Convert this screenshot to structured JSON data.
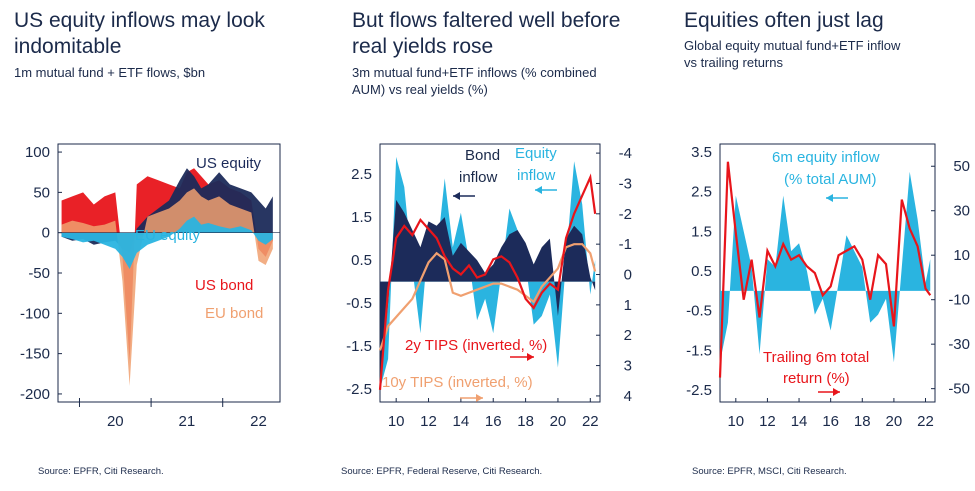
{
  "colors": {
    "navy": "#1c2b5a",
    "cyan": "#2ab4e0",
    "red": "#e8151b",
    "orange": "#f0a070",
    "text": "#1b2a4a"
  },
  "chart_data": [
    {
      "type": "area",
      "title": "US equity inflows may look indomitable",
      "subtitle": "1m mutual fund + ETF flows, $bn",
      "source": "Source: EPFR, Citi Research.",
      "x_ticks": [
        "20",
        "21",
        "22"
      ],
      "y_ticks": [
        "100",
        "50",
        "0",
        "-50",
        "-100",
        "-150",
        "-200"
      ],
      "ylim": [
        -210,
        110
      ],
      "xlim": [
        2019.2,
        2022.3
      ],
      "series": [
        {
          "name": "US equity",
          "color": "#1c2b5a",
          "x": [
            2019.25,
            2019.4,
            2019.55,
            2019.7,
            2019.85,
            2020.0,
            2020.1,
            2020.2,
            2020.3,
            2020.45,
            2020.6,
            2020.75,
            2020.9,
            2021.0,
            2021.1,
            2021.2,
            2021.3,
            2021.45,
            2021.6,
            2021.75,
            2021.9,
            2022.0,
            2022.1,
            2022.2
          ],
          "y": [
            -5,
            -10,
            -8,
            -15,
            -12,
            -10,
            -20,
            -25,
            5,
            20,
            30,
            40,
            65,
            80,
            70,
            55,
            60,
            75,
            60,
            55,
            50,
            40,
            30,
            45
          ]
        },
        {
          "name": "EU equity",
          "color": "#2ab4e0",
          "x": [
            2019.25,
            2019.4,
            2019.55,
            2019.7,
            2019.85,
            2020.0,
            2020.1,
            2020.2,
            2020.3,
            2020.45,
            2020.6,
            2020.75,
            2020.9,
            2021.0,
            2021.1,
            2021.2,
            2021.3,
            2021.45,
            2021.6,
            2021.75,
            2021.9,
            2022.0,
            2022.1,
            2022.2
          ],
          "y": [
            -5,
            -8,
            -12,
            -10,
            -15,
            -20,
            -30,
            -45,
            -25,
            -15,
            -10,
            -5,
            5,
            15,
            20,
            10,
            12,
            8,
            5,
            8,
            3,
            -10,
            -15,
            -8
          ]
        },
        {
          "name": "US bond",
          "color": "#e8151b",
          "x": [
            2019.25,
            2019.4,
            2019.55,
            2019.7,
            2019.85,
            2020.0,
            2020.1,
            2020.2,
            2020.3,
            2020.45,
            2020.6,
            2020.75,
            2020.9,
            2021.0,
            2021.1,
            2021.2,
            2021.3,
            2021.45,
            2021.6,
            2021.75,
            2021.9,
            2022.0,
            2022.1,
            2022.2
          ],
          "y": [
            40,
            45,
            50,
            35,
            45,
            50,
            -30,
            -160,
            60,
            70,
            65,
            60,
            55,
            75,
            80,
            70,
            60,
            65,
            55,
            50,
            40,
            -20,
            -30,
            -10
          ]
        },
        {
          "name": "EU bond",
          "color": "#f0a070",
          "x": [
            2019.25,
            2019.4,
            2019.55,
            2019.7,
            2019.85,
            2020.0,
            2020.1,
            2020.2,
            2020.3,
            2020.45,
            2020.6,
            2020.75,
            2020.9,
            2021.0,
            2021.1,
            2021.2,
            2021.3,
            2021.45,
            2021.6,
            2021.75,
            2021.9,
            2022.0,
            2022.1,
            2022.2
          ],
          "y": [
            10,
            15,
            12,
            8,
            10,
            15,
            -60,
            -190,
            -40,
            20,
            25,
            30,
            40,
            50,
            55,
            45,
            40,
            45,
            35,
            30,
            25,
            -35,
            -40,
            -20
          ]
        }
      ]
    },
    {
      "type": "line",
      "title": "But flows faltered well before real yields rose",
      "subtitle": "3m mutual fund+ETF inflows (% combined AUM) vs real yields (%)",
      "source": "Source: EPFR, Federal Reserve, Citi Research.",
      "x_ticks": [
        "10",
        "12",
        "14",
        "16",
        "18",
        "20",
        "22"
      ],
      "y_ticks_left": [
        "2.5",
        "1.5",
        "0.5",
        "-0.5",
        "-1.5",
        "-2.5"
      ],
      "y_ticks_right": [
        "-4",
        "-3",
        "-2",
        "-1",
        "0",
        "1",
        "2",
        "3",
        "4"
      ],
      "ylim_left": [
        -2.8,
        3.2
      ],
      "ylim_right": [
        4.2,
        -4.3
      ],
      "xlim": [
        2009,
        2022.6
      ],
      "series": [
        {
          "name": "Equity inflow",
          "color": "#2ab4e0",
          "axis": "left",
          "style": "area",
          "x": [
            2009,
            2009.5,
            2010,
            2010.5,
            2011,
            2011.5,
            2012,
            2012.5,
            2013,
            2013.5,
            2014,
            2014.5,
            2015,
            2015.5,
            2016,
            2016.5,
            2017,
            2017.5,
            2018,
            2018.5,
            2019,
            2019.5,
            2020,
            2020.5,
            2021,
            2021.5,
            2022,
            2022.3
          ],
          "y": [
            -2.5,
            -1.8,
            2.9,
            2.2,
            0.3,
            -1.2,
            1.0,
            0.6,
            2.4,
            0.8,
            1.6,
            0.5,
            -0.9,
            -0.4,
            -1.2,
            0.2,
            1.7,
            1.2,
            0.4,
            -1.0,
            -0.8,
            -0.3,
            -2.0,
            0.5,
            2.8,
            1.8,
            -0.3,
            0.5
          ]
        },
        {
          "name": "Bond inflow",
          "color": "#1c2b5a",
          "axis": "left",
          "style": "area",
          "x": [
            2009,
            2009.5,
            2010,
            2010.5,
            2011,
            2011.5,
            2012,
            2012.5,
            2013,
            2013.5,
            2014,
            2014.5,
            2015,
            2015.5,
            2016,
            2016.5,
            2017,
            2017.5,
            2018,
            2018.5,
            2019,
            2019.5,
            2020,
            2020.5,
            2021,
            2021.5,
            2022,
            2022.3
          ],
          "y": [
            -2.3,
            -0.5,
            1.9,
            1.6,
            1.2,
            0.8,
            1.4,
            1.3,
            1.5,
            0.6,
            0.9,
            0.7,
            0.5,
            0.2,
            0.4,
            0.8,
            1.1,
            1.2,
            0.9,
            0.4,
            0.8,
            1.0,
            -0.8,
            1.0,
            1.3,
            1.1,
            0.1,
            -0.2
          ]
        },
        {
          "name": "2y TIPS (inverted, %)",
          "color": "#e8151b",
          "axis": "right",
          "style": "line",
          "x": [
            2009,
            2009.5,
            2010,
            2010.5,
            2011,
            2011.5,
            2012,
            2012.5,
            2013,
            2013.5,
            2014,
            2014.5,
            2015,
            2015.5,
            2016,
            2016.5,
            2017,
            2017.5,
            2018,
            2018.5,
            2019,
            2019.5,
            2020,
            2020.5,
            2021,
            2021.5,
            2022,
            2022.3
          ],
          "y": [
            3.8,
            0.5,
            -1.2,
            -1.6,
            -1.3,
            -1.8,
            -1.5,
            -1.2,
            -0.6,
            -0.2,
            0.0,
            -0.3,
            0.1,
            0.0,
            -0.5,
            -0.6,
            -0.4,
            0.1,
            0.8,
            1.1,
            0.6,
            0.3,
            0.5,
            -1.2,
            -2.0,
            -2.6,
            -3.2,
            -2.0
          ]
        },
        {
          "name": "10y TIPS (inverted, %)",
          "color": "#f0a070",
          "axis": "right",
          "style": "line",
          "x": [
            2009,
            2009.5,
            2010,
            2010.5,
            2011,
            2011.5,
            2012,
            2012.5,
            2013,
            2013.5,
            2014,
            2014.5,
            2015,
            2015.5,
            2016,
            2016.5,
            2017,
            2017.5,
            2018,
            2018.5,
            2019,
            2019.5,
            2020,
            2020.5,
            2021,
            2021.5,
            2022,
            2022.3
          ],
          "y": [
            2.5,
            1.7,
            1.4,
            1.1,
            0.8,
            0.2,
            -0.4,
            -0.7,
            -0.5,
            0.6,
            0.7,
            0.6,
            0.5,
            0.4,
            0.3,
            0.3,
            0.4,
            0.5,
            0.7,
            0.9,
            0.4,
            0.1,
            -0.2,
            -0.9,
            -1.0,
            -1.0,
            -0.7,
            -0.1
          ]
        }
      ],
      "annotations": [
        "Bond",
        "inflow",
        "Equity",
        "inflow",
        "2y TIPS (inverted, %)",
        "10y TIPS (inverted, %)"
      ]
    },
    {
      "type": "line",
      "title": "Equities often just lag",
      "subtitle": "Global equity mutual fund+ETF inflow vs trailing returns",
      "source": "Source: EPFR, MSCI, Citi Research.",
      "x_ticks": [
        "10",
        "12",
        "14",
        "16",
        "18",
        "20",
        "22"
      ],
      "y_ticks_left": [
        "3.5",
        "2.5",
        "1.5",
        "0.5",
        "-0.5",
        "-1.5",
        "-2.5"
      ],
      "y_ticks_right": [
        "50",
        "30",
        "10",
        "-10",
        "-30",
        "-50"
      ],
      "ylim_left": [
        -2.8,
        3.7
      ],
      "ylim_right": [
        -56,
        60
      ],
      "xlim": [
        2009,
        2022.6
      ],
      "series": [
        {
          "name": "6m equity inflow (% total AUM)",
          "color": "#2ab4e0",
          "axis": "left",
          "style": "area",
          "x": [
            2009,
            2009.5,
            2010,
            2010.5,
            2011,
            2011.5,
            2012,
            2012.5,
            2013,
            2013.5,
            2014,
            2014.5,
            2015,
            2015.5,
            2016,
            2016.5,
            2017,
            2017.5,
            2018,
            2018.5,
            2019,
            2019.5,
            2020,
            2020.5,
            2021,
            2021.5,
            2022,
            2022.3
          ],
          "y": [
            -1.8,
            -0.8,
            2.4,
            1.5,
            0.6,
            -1.6,
            0.8,
            0.6,
            2.4,
            1.0,
            1.2,
            0.5,
            -0.6,
            -0.2,
            -1.0,
            0.2,
            1.4,
            1.0,
            0.6,
            -0.8,
            -0.6,
            -0.2,
            -1.8,
            0.6,
            3.0,
            1.8,
            0.2,
            0.8
          ]
        },
        {
          "name": "Trailing 6m total return (%)",
          "color": "#e8151b",
          "axis": "right",
          "style": "line",
          "x": [
            2009,
            2009.5,
            2010,
            2010.5,
            2011,
            2011.5,
            2012,
            2012.5,
            2013,
            2013.5,
            2014,
            2014.5,
            2015,
            2015.5,
            2016,
            2016.5,
            2017,
            2017.5,
            2018,
            2018.5,
            2019,
            2019.5,
            2020,
            2020.5,
            2021,
            2021.5,
            2022,
            2022.3
          ],
          "y": [
            -45,
            52,
            20,
            -10,
            8,
            -18,
            12,
            5,
            15,
            8,
            10,
            5,
            2,
            -8,
            -4,
            10,
            12,
            14,
            8,
            -10,
            10,
            6,
            -22,
            35,
            22,
            14,
            -5,
            -8
          ]
        }
      ],
      "annotations": [
        "6m equity inflow",
        "(% total AUM)",
        "Trailing 6m total",
        "return (%)"
      ]
    }
  ]
}
